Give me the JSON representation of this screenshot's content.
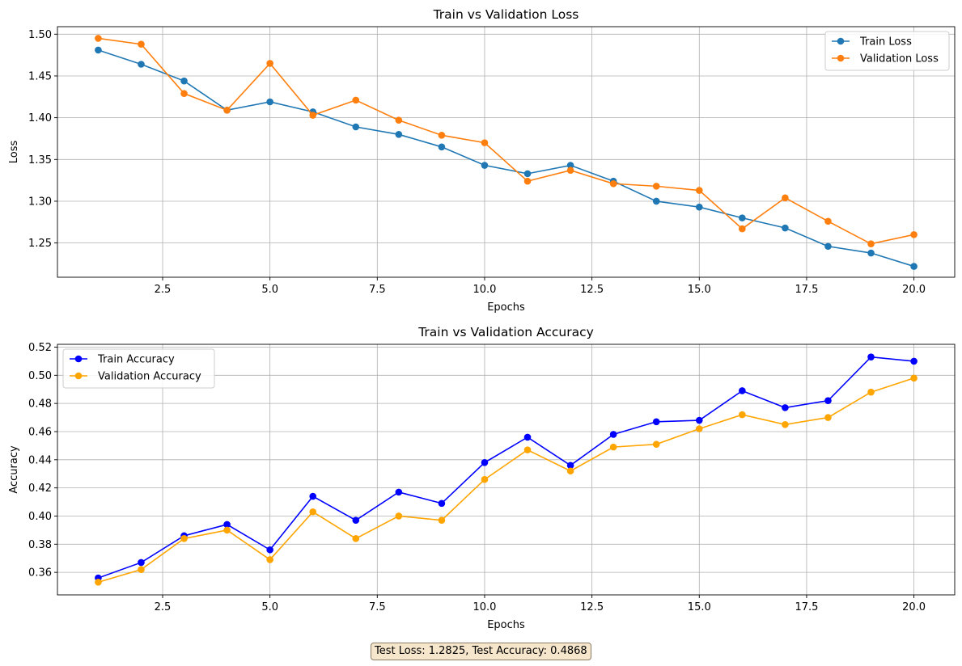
{
  "chart_data": [
    {
      "type": "line",
      "title": "Train vs Validation Loss",
      "xlabel": "Epochs",
      "ylabel": "Loss",
      "xlim": [
        0.05,
        20.95
      ],
      "ylim": [
        1.209,
        1.509
      ],
      "xticks": [
        2.5,
        5.0,
        7.5,
        10.0,
        12.5,
        15.0,
        17.5,
        20.0
      ],
      "xtick_labels": [
        "2.5",
        "5.0",
        "7.5",
        "10.0",
        "12.5",
        "15.0",
        "17.5",
        "20.0"
      ],
      "yticks": [
        1.25,
        1.3,
        1.35,
        1.4,
        1.45,
        1.5
      ],
      "ytick_labels": [
        "1.25",
        "1.30",
        "1.35",
        "1.40",
        "1.45",
        "1.50"
      ],
      "grid": true,
      "legend_position": "top-right",
      "x": [
        1,
        2,
        3,
        4,
        5,
        6,
        7,
        8,
        9,
        10,
        11,
        12,
        13,
        14,
        15,
        16,
        17,
        18,
        19,
        20
      ],
      "series": [
        {
          "name": "Train Loss",
          "color": "#1f77b4",
          "values": [
            1.481,
            1.464,
            1.444,
            1.409,
            1.419,
            1.407,
            1.389,
            1.38,
            1.365,
            1.343,
            1.333,
            1.343,
            1.324,
            1.3,
            1.293,
            1.28,
            1.268,
            1.246,
            1.238,
            1.222
          ]
        },
        {
          "name": "Validation Loss",
          "color": "#ff7f0e",
          "values": [
            1.495,
            1.488,
            1.429,
            1.409,
            1.465,
            1.403,
            1.421,
            1.397,
            1.379,
            1.37,
            1.324,
            1.337,
            1.321,
            1.318,
            1.313,
            1.267,
            1.304,
            1.276,
            1.249,
            1.26
          ]
        }
      ]
    },
    {
      "type": "line",
      "title": "Train vs Validation Accuracy",
      "xlabel": "Epochs",
      "ylabel": "Accuracy",
      "xlim": [
        0.05,
        20.95
      ],
      "ylim": [
        0.344,
        0.522
      ],
      "xticks": [
        2.5,
        5.0,
        7.5,
        10.0,
        12.5,
        15.0,
        17.5,
        20.0
      ],
      "xtick_labels": [
        "2.5",
        "5.0",
        "7.5",
        "10.0",
        "12.5",
        "15.0",
        "17.5",
        "20.0"
      ],
      "yticks": [
        0.36,
        0.38,
        0.4,
        0.42,
        0.44,
        0.46,
        0.48,
        0.5,
        0.52
      ],
      "ytick_labels": [
        "0.36",
        "0.38",
        "0.40",
        "0.42",
        "0.44",
        "0.46",
        "0.48",
        "0.50",
        "0.52"
      ],
      "grid": true,
      "legend_position": "top-left",
      "x": [
        1,
        2,
        3,
        4,
        5,
        6,
        7,
        8,
        9,
        10,
        11,
        12,
        13,
        14,
        15,
        16,
        17,
        18,
        19,
        20
      ],
      "series": [
        {
          "name": "Train Accuracy",
          "color": "#0000ff",
          "values": [
            0.356,
            0.367,
            0.386,
            0.394,
            0.376,
            0.414,
            0.397,
            0.417,
            0.409,
            0.438,
            0.456,
            0.436,
            0.458,
            0.467,
            0.468,
            0.489,
            0.477,
            0.482,
            0.513,
            0.51
          ]
        },
        {
          "name": "Validation Accuracy",
          "color": "#ffa500",
          "values": [
            0.353,
            0.362,
            0.384,
            0.39,
            0.369,
            0.403,
            0.384,
            0.4,
            0.397,
            0.426,
            0.447,
            0.432,
            0.449,
            0.451,
            0.462,
            0.472,
            0.465,
            0.47,
            0.488,
            0.498
          ]
        }
      ]
    }
  ],
  "footer": {
    "text": "Test Loss: 1.2825, Test Accuracy: 0.4868"
  }
}
